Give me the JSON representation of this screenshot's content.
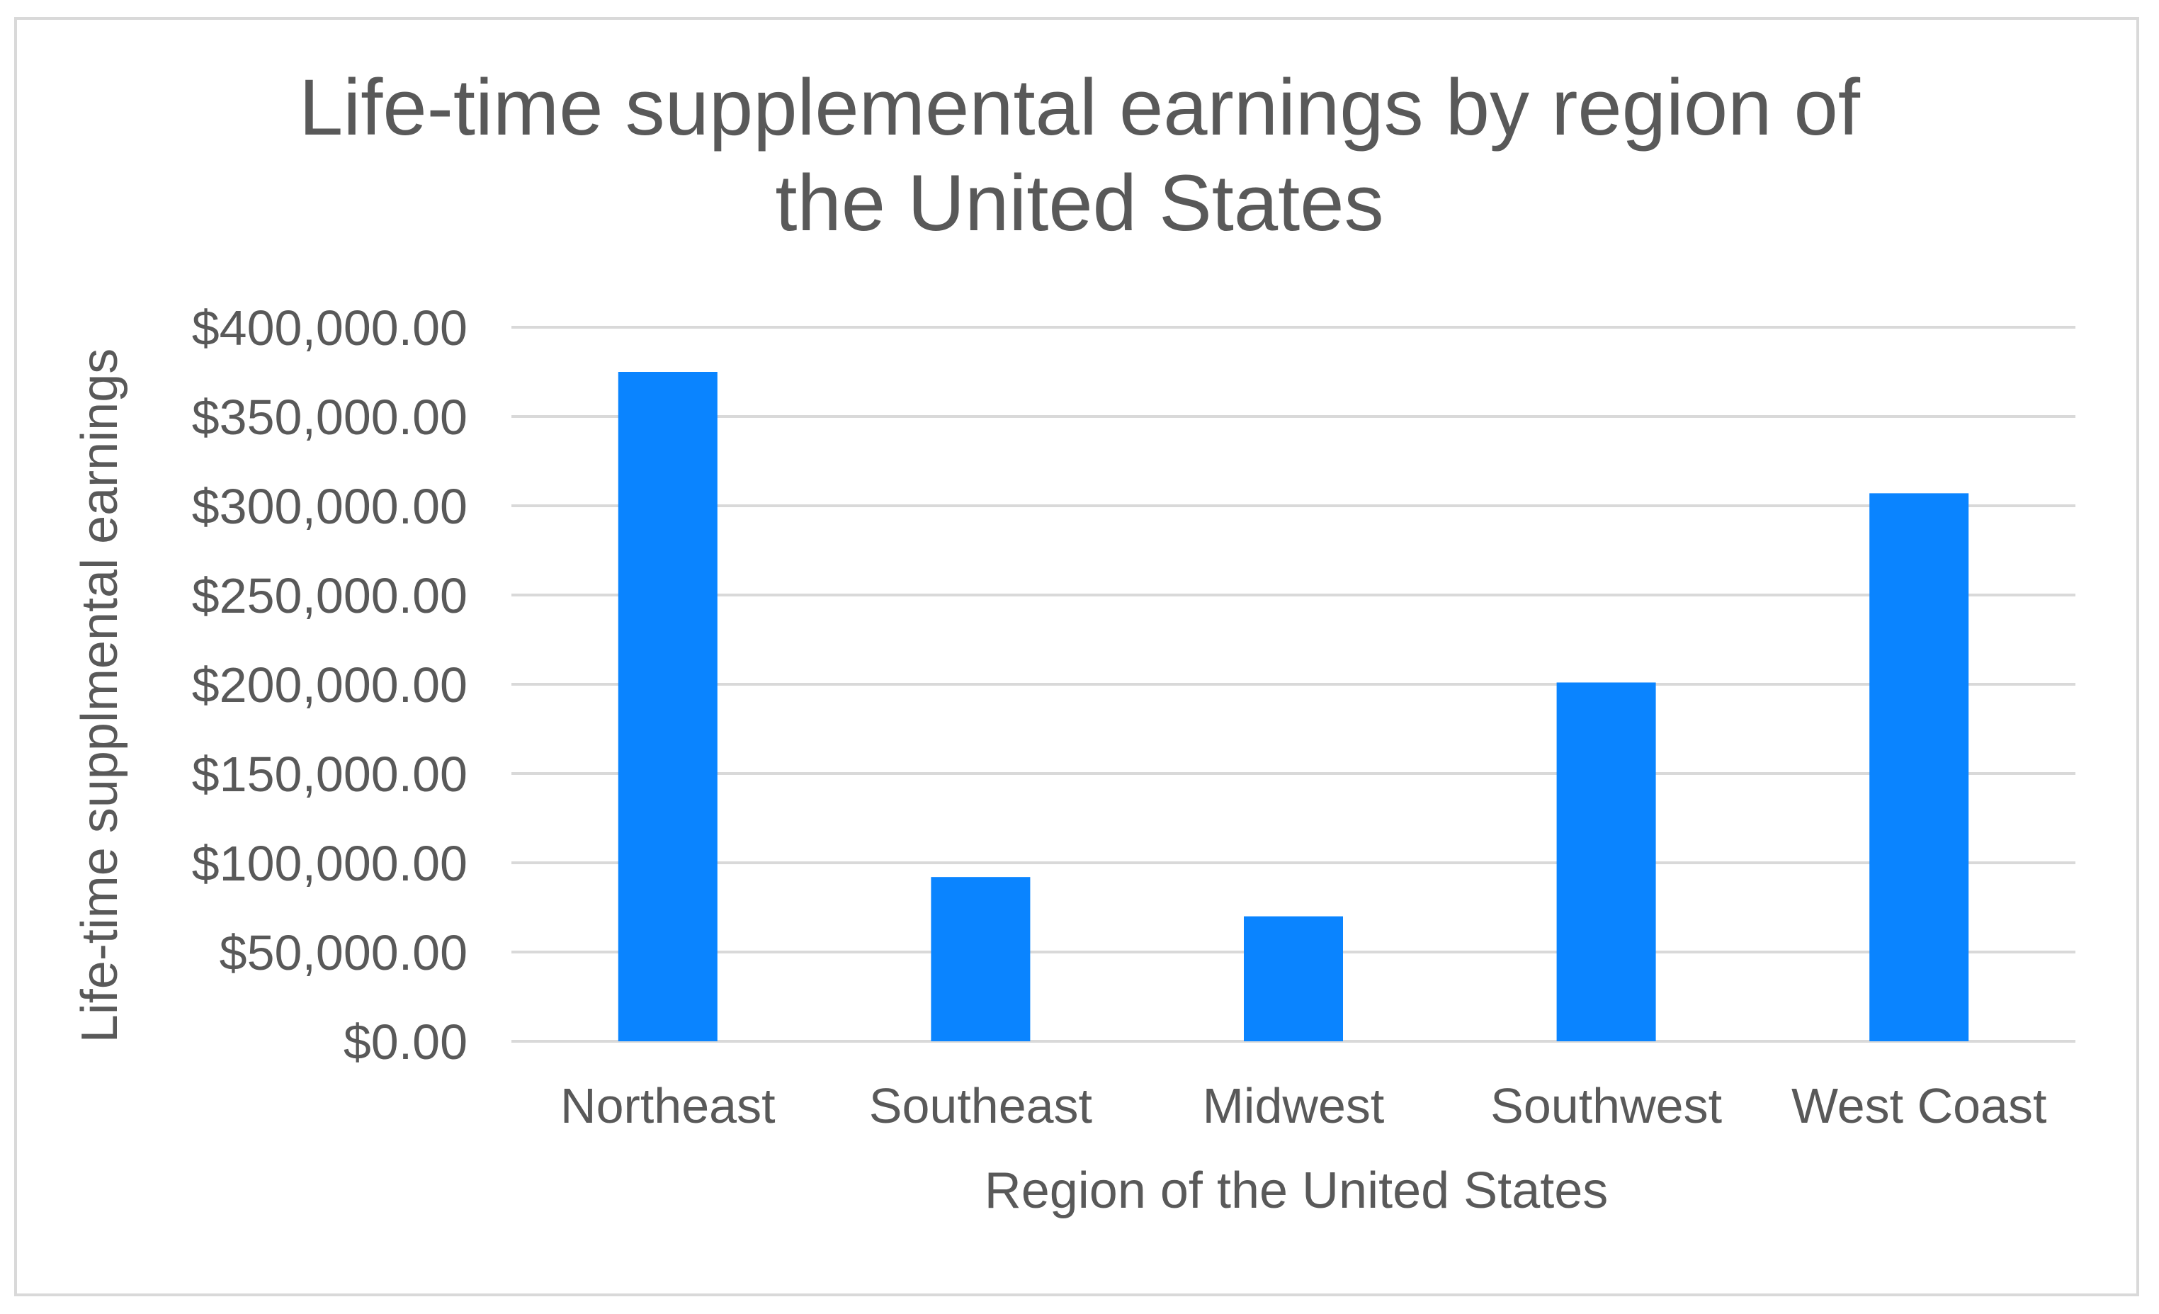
{
  "chart_data": {
    "type": "bar",
    "title": [
      "Life-time supplemental earnings by region of",
      "the United States"
    ],
    "xlabel": "Region of the United States",
    "ylabel": "Life-time supplmental earnings",
    "categories": [
      "Northeast",
      "Southeast",
      "Midwest",
      "Southwest",
      "West Coast"
    ],
    "values": [
      375000,
      92000,
      70000,
      201000,
      307000
    ],
    "ylim": [
      0,
      400000
    ],
    "yticks": [
      0,
      50000,
      100000,
      150000,
      200000,
      250000,
      300000,
      350000,
      400000
    ],
    "ytick_labels": [
      "$0.00",
      "$50,000.00",
      "$100,000.00",
      "$150,000.00",
      "$200,000.00",
      "$250,000.00",
      "$300,000.00",
      "$350,000.00",
      "$400,000.00"
    ],
    "grid": true,
    "legend": "none",
    "bar_color": "#0A84FF"
  }
}
